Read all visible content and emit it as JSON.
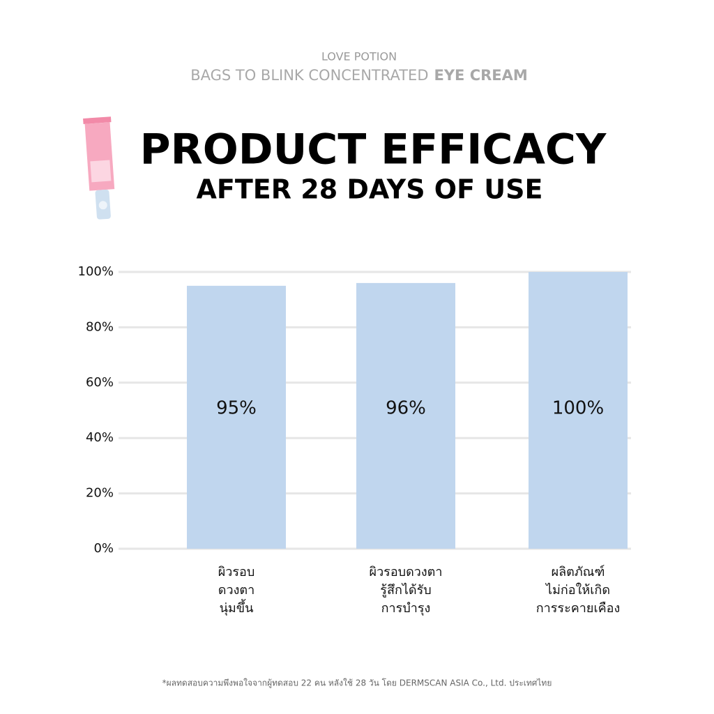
{
  "brand": "LOVE POTION",
  "product_line": "BAGS TO BLINK CONCENTRATED",
  "product_name": "EYE CREAM",
  "footnote": "*ผลทดสอบความพึงพอใจจากผู้ทดสอบ 22 คน หลังใช้ 28 วัน โดย DERMSCAN ASIA Co., Ltd. ประเทศไทย",
  "chart_data": {
    "type": "bar",
    "title": "PRODUCT EFFICACY",
    "subtitle": "AFTER 28 DAYS OF USE",
    "categories": [
      [
        "ผิวรอบ",
        "ดวงตา",
        "นุ่มขึ้น"
      ],
      [
        "ผิวรอบดวงตา",
        "รู้สึกได้รับ",
        "การบำรุง"
      ],
      [
        "ผลิตภัณฑ์",
        "ไม่ก่อให้เกิด",
        "การระคายเคือง"
      ]
    ],
    "values": [
      95,
      96,
      100
    ],
    "value_labels": [
      "95%",
      "96%",
      "100%"
    ],
    "color": "#c0d6ee",
    "ylim": [
      0,
      100
    ],
    "yticks": [
      {
        "value": 0,
        "label": "0%"
      },
      {
        "value": 20,
        "label": "20%"
      },
      {
        "value": 40,
        "label": "40%"
      },
      {
        "value": 60,
        "label": "60%"
      },
      {
        "value": 80,
        "label": "80%"
      },
      {
        "value": 100,
        "label": "100%"
      }
    ],
    "grid": true
  }
}
